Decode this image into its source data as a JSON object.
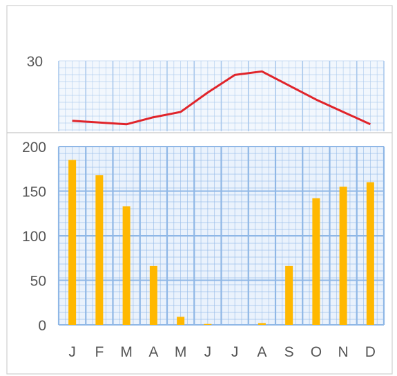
{
  "chart_data": [
    {
      "type": "line",
      "categories": [
        "J",
        "F",
        "M",
        "A",
        "M",
        "J",
        "J",
        "A",
        "S",
        "O",
        "N",
        "D"
      ],
      "series": [
        {
          "values": [
            13,
            12.5,
            12,
            14,
            15.5,
            21,
            26,
            27,
            23,
            19,
            15.5,
            12
          ]
        }
      ],
      "ylim": [
        10,
        30
      ],
      "y_tick_labels": [
        "30"
      ],
      "grid": true,
      "colors": {
        "line": "#e0242a",
        "grid": "#a9c8ec",
        "plot_bg": "#f2f7fd"
      }
    },
    {
      "type": "bar",
      "categories": [
        "J",
        "F",
        "M",
        "A",
        "M",
        "J",
        "J",
        "A",
        "S",
        "O",
        "N",
        "D"
      ],
      "series": [
        {
          "values": [
            185,
            168,
            133,
            66,
            9,
            1,
            0,
            2,
            66,
            142,
            155,
            160
          ]
        }
      ],
      "ylim": [
        0,
        200
      ],
      "y_tick_labels": [
        "0",
        "50",
        "100",
        "150",
        "200"
      ],
      "grid": true,
      "colors": {
        "bar": "#ffb800",
        "grid": "#8fb7e6",
        "plot_bg": "#eaf2fc"
      }
    }
  ]
}
